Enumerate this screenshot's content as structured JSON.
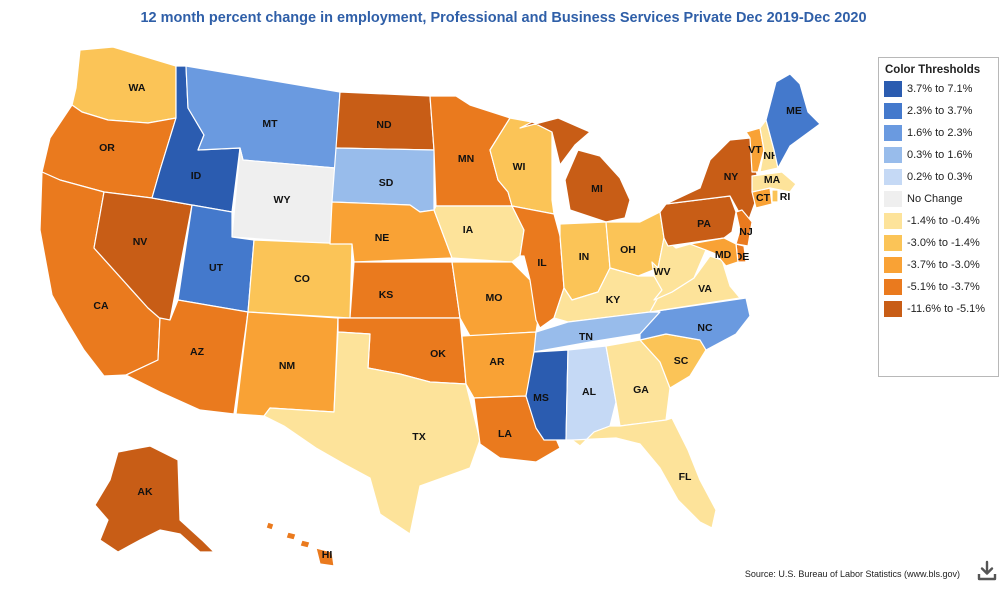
{
  "title": "12 month percent change in employment, Professional and Business Services Private Dec 2019-Dec 2020",
  "source": "Source: U.S. Bureau of Labor Statistics (www.bls.gov)",
  "legend": {
    "title": "Color Thresholds",
    "items": [
      {
        "label": "3.7% to 7.1%",
        "color": "#2b5cb0"
      },
      {
        "label": "2.3% to 3.7%",
        "color": "#4479cc"
      },
      {
        "label": "1.6% to 2.3%",
        "color": "#6a9ae0"
      },
      {
        "label": "0.3% to 1.6%",
        "color": "#98bceb"
      },
      {
        "label": "0.2% to 0.3%",
        "color": "#c5d9f5"
      },
      {
        "label": "No Change",
        "color": "#efefef"
      },
      {
        "label": "-1.4% to -0.4%",
        "color": "#fde39a"
      },
      {
        "label": "-3.0% to -1.4%",
        "color": "#fbc457"
      },
      {
        "label": "-3.7% to -3.0%",
        "color": "#f9a235"
      },
      {
        "label": "-5.1% to -3.7%",
        "color": "#ea7a1e"
      },
      {
        "label": "-11.6% to -5.1%",
        "color": "#c85d16"
      }
    ]
  },
  "states": [
    {
      "abbr": "WA",
      "color": "#fbc457"
    },
    {
      "abbr": "OR",
      "color": "#ea7a1e"
    },
    {
      "abbr": "CA",
      "color": "#ea7a1e"
    },
    {
      "abbr": "NV",
      "color": "#c85d16"
    },
    {
      "abbr": "ID",
      "color": "#2b5cb0"
    },
    {
      "abbr": "MT",
      "color": "#6a9ae0"
    },
    {
      "abbr": "WY",
      "color": "#efefef"
    },
    {
      "abbr": "UT",
      "color": "#4479cc"
    },
    {
      "abbr": "AZ",
      "color": "#ea7a1e"
    },
    {
      "abbr": "CO",
      "color": "#fbc457"
    },
    {
      "abbr": "NM",
      "color": "#f9a235"
    },
    {
      "abbr": "ND",
      "color": "#c85d16"
    },
    {
      "abbr": "SD",
      "color": "#98bceb"
    },
    {
      "abbr": "NE",
      "color": "#f9a235"
    },
    {
      "abbr": "KS",
      "color": "#ea7a1e"
    },
    {
      "abbr": "OK",
      "color": "#ea7a1e"
    },
    {
      "abbr": "TX",
      "color": "#fde39a"
    },
    {
      "abbr": "MN",
      "color": "#ea7a1e"
    },
    {
      "abbr": "IA",
      "color": "#fde39a"
    },
    {
      "abbr": "MO",
      "color": "#f9a235"
    },
    {
      "abbr": "AR",
      "color": "#f9a235"
    },
    {
      "abbr": "LA",
      "color": "#ea7a1e"
    },
    {
      "abbr": "WI",
      "color": "#fbc457"
    },
    {
      "abbr": "IL",
      "color": "#ea7a1e"
    },
    {
      "abbr": "MI",
      "color": "#c85d16"
    },
    {
      "abbr": "IN",
      "color": "#fbc457"
    },
    {
      "abbr": "OH",
      "color": "#fbc457"
    },
    {
      "abbr": "KY",
      "color": "#fde39a"
    },
    {
      "abbr": "TN",
      "color": "#98bceb"
    },
    {
      "abbr": "MS",
      "color": "#2b5cb0"
    },
    {
      "abbr": "AL",
      "color": "#c5d9f5"
    },
    {
      "abbr": "GA",
      "color": "#fde39a"
    },
    {
      "abbr": "FL",
      "color": "#fde39a"
    },
    {
      "abbr": "SC",
      "color": "#fbc457"
    },
    {
      "abbr": "NC",
      "color": "#6a9ae0"
    },
    {
      "abbr": "VA",
      "color": "#fde39a"
    },
    {
      "abbr": "WV",
      "color": "#fde39a"
    },
    {
      "abbr": "PA",
      "color": "#c85d16"
    },
    {
      "abbr": "NY",
      "color": "#c85d16"
    },
    {
      "abbr": "NJ",
      "color": "#ea7a1e"
    },
    {
      "abbr": "DE",
      "color": "#ea7a1e"
    },
    {
      "abbr": "MD",
      "color": "#f9a235"
    },
    {
      "abbr": "CT",
      "color": "#f9a235"
    },
    {
      "abbr": "RI",
      "color": "#fbc457"
    },
    {
      "abbr": "MA",
      "color": "#fde39a"
    },
    {
      "abbr": "VT",
      "color": "#f9a235"
    },
    {
      "abbr": "NH",
      "color": "#fde39a"
    },
    {
      "abbr": "ME",
      "color": "#4479cc"
    },
    {
      "abbr": "AK",
      "color": "#c85d16"
    },
    {
      "abbr": "HI",
      "color": "#ea7a1e"
    }
  ],
  "download_icon": "download-icon"
}
